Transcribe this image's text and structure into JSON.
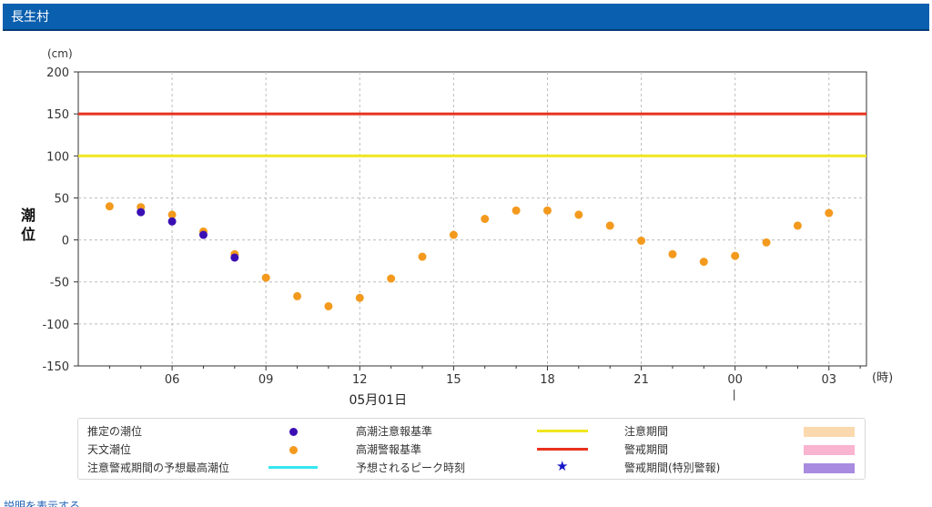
{
  "header": {
    "title": "長生村"
  },
  "chart_data": {
    "type": "scatter",
    "ylabel": "潮位",
    "yunit": "(cm)",
    "xunit": "(時)",
    "date_label": "05月01日",
    "ylim": [
      -150,
      200
    ],
    "yticks": [
      200,
      150,
      100,
      50,
      0,
      -50,
      -100,
      -150
    ],
    "x_hour_range": [
      3,
      28.2
    ],
    "xticks": [
      {
        "hour": 6,
        "label": "06"
      },
      {
        "hour": 9,
        "label": "09"
      },
      {
        "hour": 12,
        "label": "12"
      },
      {
        "hour": 15,
        "label": "15"
      },
      {
        "hour": 18,
        "label": "18"
      },
      {
        "hour": 21,
        "label": "21"
      },
      {
        "hour": 24,
        "label": "00"
      },
      {
        "hour": 27,
        "label": "03"
      }
    ],
    "grid": true,
    "reference_lines": [
      {
        "name": "高潮警報基準",
        "value": 150,
        "color": "#e8321e"
      },
      {
        "name": "高潮注意報基準",
        "value": 100,
        "color": "#f0e61e"
      }
    ],
    "series": [
      {
        "name": "天文潮位",
        "color": "#f39a1e",
        "points": [
          [
            4,
            40
          ],
          [
            5,
            39
          ],
          [
            6,
            30
          ],
          [
            7,
            10
          ],
          [
            8,
            -17
          ],
          [
            9,
            -45
          ],
          [
            10,
            -67
          ],
          [
            11,
            -79
          ],
          [
            12,
            -69
          ],
          [
            13,
            -46
          ],
          [
            14,
            -20
          ],
          [
            15,
            6
          ],
          [
            16,
            25
          ],
          [
            17,
            35
          ],
          [
            18,
            35
          ],
          [
            19,
            30
          ],
          [
            20,
            17
          ],
          [
            21,
            -1
          ],
          [
            22,
            -17
          ],
          [
            23,
            -26
          ],
          [
            24,
            -19
          ],
          [
            25,
            -3
          ],
          [
            26,
            17
          ],
          [
            27,
            32
          ]
        ]
      },
      {
        "name": "推定の潮位",
        "color": "#3a0fb4",
        "points": [
          [
            5,
            33
          ],
          [
            6,
            22
          ],
          [
            7,
            6
          ],
          [
            8,
            -21
          ]
        ]
      }
    ]
  },
  "legend": {
    "col1": [
      {
        "label": "推定の潮位",
        "kind": "dot",
        "color": "#3a0fb4"
      },
      {
        "label": "天文潮位",
        "kind": "dot",
        "color": "#f39a1e"
      },
      {
        "label": "注意警戒期間の予想最高潮位",
        "kind": "line",
        "color": "#36e6f0"
      }
    ],
    "col2": [
      {
        "label": "高潮注意報基準",
        "kind": "line",
        "color": "#f0e61e"
      },
      {
        "label": "高潮警報基準",
        "kind": "line",
        "color": "#e8321e"
      },
      {
        "label": "予想されるピーク時刻",
        "kind": "star",
        "color": "#1414c8"
      }
    ],
    "col3": [
      {
        "label": "注意期間",
        "kind": "swatch",
        "color": "#fbd9ae"
      },
      {
        "label": "警戒期間",
        "kind": "swatch",
        "color": "#f9b4cf"
      },
      {
        "label": "警戒期間(特別警報)",
        "kind": "swatch",
        "color": "#a98be0"
      }
    ]
  },
  "footer": {
    "link_text": "説明を表示する"
  }
}
